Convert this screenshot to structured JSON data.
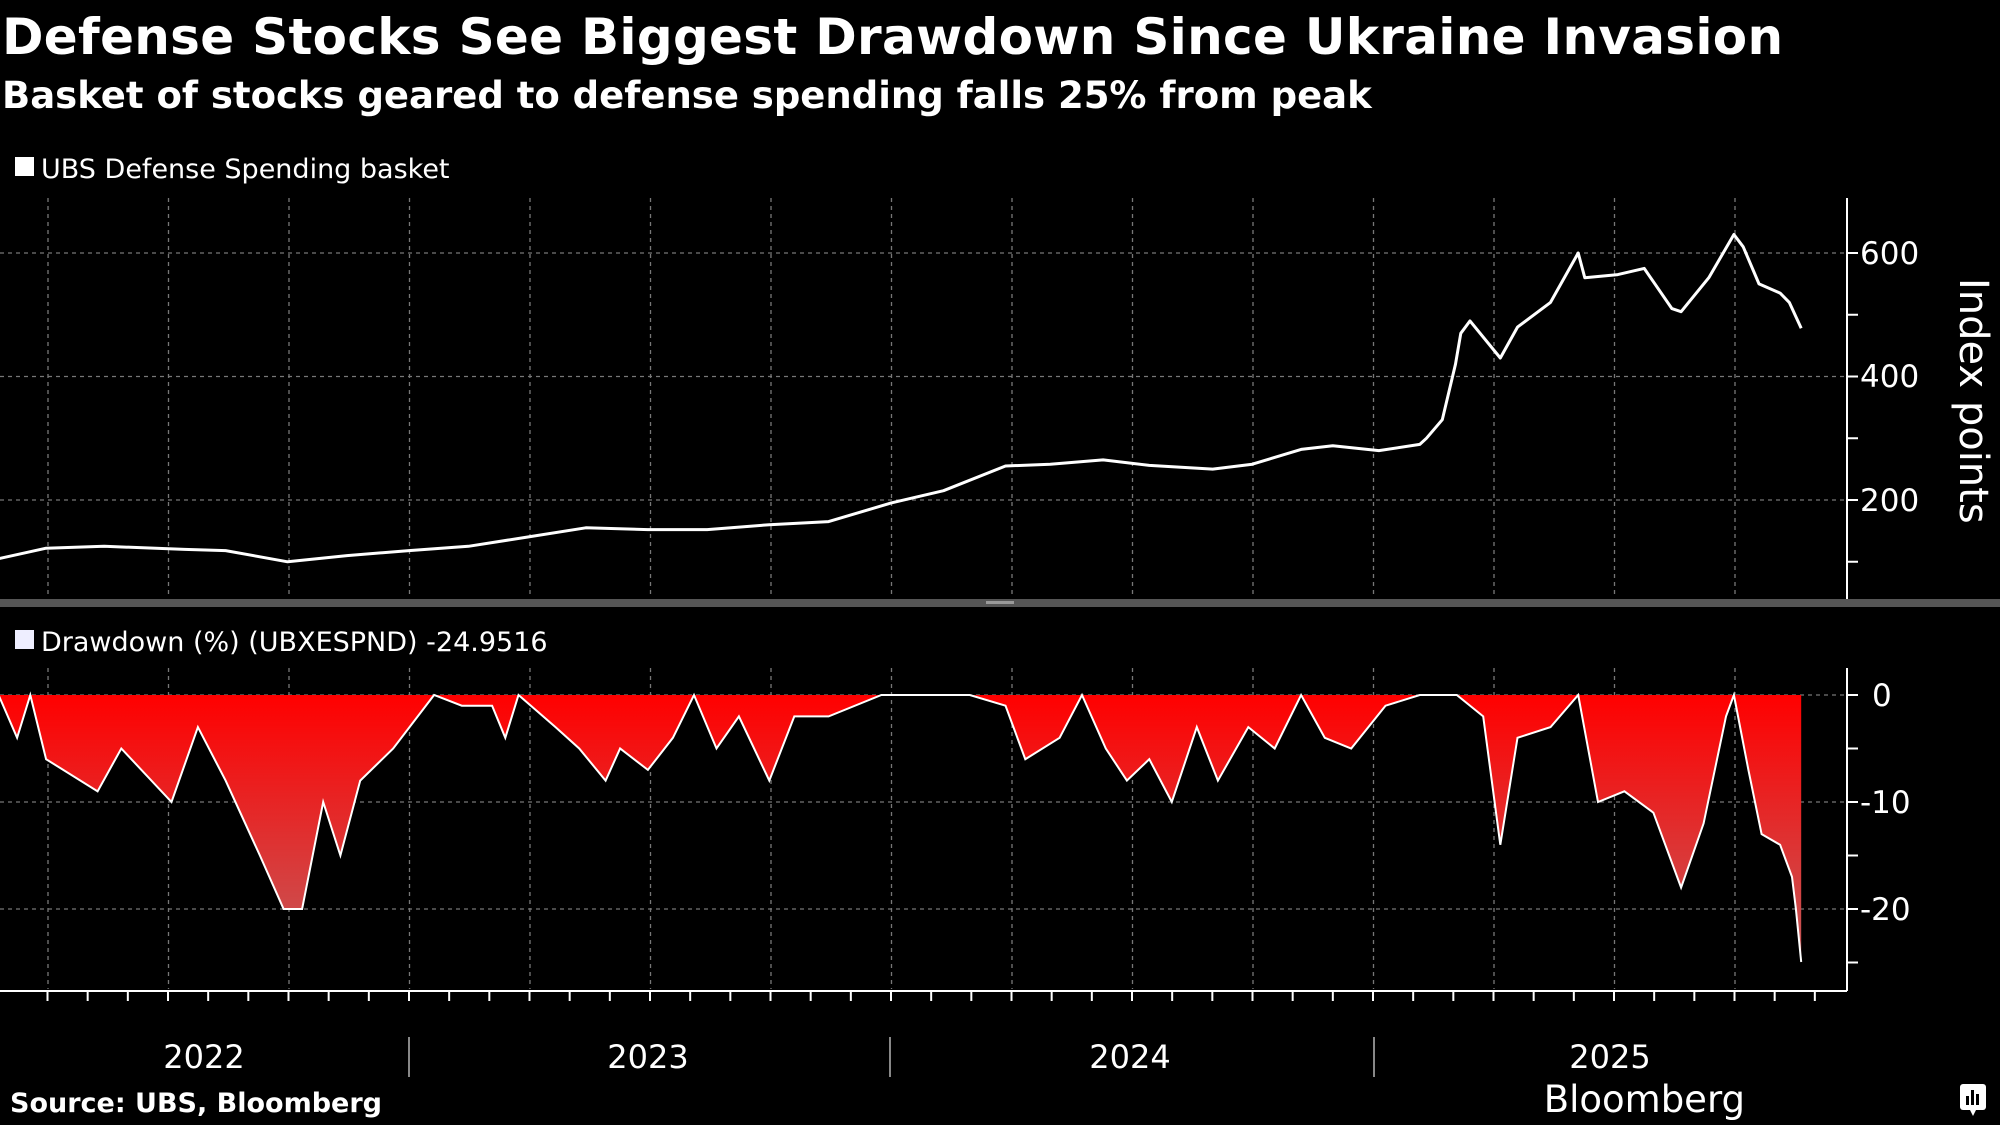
{
  "header": {
    "title": "Defense Stocks See Biggest Drawdown Since Ukraine Invasion",
    "subtitle": "Basket of stocks geared to defense spending falls 25% from peak"
  },
  "footer": {
    "source": "Source: UBS, Bloomberg",
    "brand": "Bloomberg"
  },
  "colors": {
    "background": "#000000",
    "line": "#ffffff",
    "drawdown_fill_top": "#ff0000",
    "drawdown_fill_bottom": "#c45a5a"
  },
  "chart_data": [
    {
      "type": "line",
      "legend": "UBS Defense Spending basket",
      "ylabel": "Index points",
      "yticks": [
        "200",
        "400",
        "600"
      ],
      "ylim": [
        38,
        690
      ],
      "grid": true,
      "legend_position": "top-left",
      "x_tick_labels": [
        "2022",
        "2023",
        "2024",
        "2025"
      ],
      "series": [
        {
          "name": "UBS Defense Spending basket",
          "points": [
            [
              "2022-02-24",
              105
            ],
            [
              "2022-04-01",
              122
            ],
            [
              "2022-05-15",
              125
            ],
            [
              "2022-07-15",
              120
            ],
            [
              "2022-08-15",
              118
            ],
            [
              "2022-10-01",
              100
            ],
            [
              "2022-11-15",
              110
            ],
            [
              "2023-01-01",
              118
            ],
            [
              "2023-02-15",
              125
            ],
            [
              "2023-04-01",
              140
            ],
            [
              "2023-05-15",
              155
            ],
            [
              "2023-07-01",
              152
            ],
            [
              "2023-08-15",
              152
            ],
            [
              "2023-10-01",
              160
            ],
            [
              "2023-11-15",
              165
            ],
            [
              "2024-01-01",
              195
            ],
            [
              "2024-02-10",
              215
            ],
            [
              "2024-03-28",
              255
            ],
            [
              "2024-05-01",
              258
            ],
            [
              "2024-06-10",
              265
            ],
            [
              "2024-07-15",
              256
            ],
            [
              "2024-09-01",
              250
            ],
            [
              "2024-10-01",
              258
            ],
            [
              "2024-11-07",
              282
            ],
            [
              "2024-12-01",
              288
            ],
            [
              "2025-01-05",
              280
            ],
            [
              "2025-02-05",
              290
            ],
            [
              "2025-02-10",
              300
            ],
            [
              "2025-02-22",
              330
            ],
            [
              "2025-03-04",
              420
            ],
            [
              "2025-03-08",
              470
            ],
            [
              "2025-03-15",
              490
            ],
            [
              "2025-04-07",
              430
            ],
            [
              "2025-04-20",
              480
            ],
            [
              "2025-05-15",
              520
            ],
            [
              "2025-06-05",
              600
            ],
            [
              "2025-06-10",
              560
            ],
            [
              "2025-07-05",
              565
            ],
            [
              "2025-07-25",
              575
            ],
            [
              "2025-08-15",
              510
            ],
            [
              "2025-08-22",
              505
            ],
            [
              "2025-09-12",
              560
            ],
            [
              "2025-10-01",
              630
            ],
            [
              "2025-10-08",
              610
            ],
            [
              "2025-10-20",
              550
            ],
            [
              "2025-11-05",
              535
            ],
            [
              "2025-11-12",
              520
            ],
            [
              "2025-11-21",
              478
            ]
          ]
        }
      ]
    },
    {
      "type": "area",
      "legend": "Drawdown (%) (UBXESPND) -24.9516",
      "yticks": [
        "0",
        "-10",
        "-20"
      ],
      "ylim": [
        -27,
        0
      ],
      "grid": true,
      "legend_position": "top-left",
      "series": [
        {
          "name": "Drawdown (%) (UBXESPND)",
          "last_value": -24.9516,
          "points": [
            [
              "2022-02-24",
              0
            ],
            [
              "2022-03-10",
              -4
            ],
            [
              "2022-03-20",
              0
            ],
            [
              "2022-04-01",
              -6
            ],
            [
              "2022-05-10",
              -9
            ],
            [
              "2022-05-28",
              -5
            ],
            [
              "2022-07-05",
              -10
            ],
            [
              "2022-07-25",
              -3
            ],
            [
              "2022-08-15",
              -8
            ],
            [
              "2022-09-10",
              -15
            ],
            [
              "2022-09-28",
              -20
            ],
            [
              "2022-10-12",
              -20
            ],
            [
              "2022-10-28",
              -10
            ],
            [
              "2022-11-10",
              -15
            ],
            [
              "2022-11-25",
              -8
            ],
            [
              "2022-12-20",
              -5
            ],
            [
              "2023-01-20",
              0
            ],
            [
              "2023-02-10",
              -1
            ],
            [
              "2023-03-05",
              -1
            ],
            [
              "2023-03-15",
              -4
            ],
            [
              "2023-03-25",
              0
            ],
            [
              "2023-04-22",
              -3
            ],
            [
              "2023-05-10",
              -5
            ],
            [
              "2023-05-30",
              -8
            ],
            [
              "2023-06-10",
              -5
            ],
            [
              "2023-07-01",
              -7
            ],
            [
              "2023-07-20",
              -4
            ],
            [
              "2023-08-05",
              0
            ],
            [
              "2023-08-22",
              -5
            ],
            [
              "2023-09-08",
              -2
            ],
            [
              "2023-10-01",
              -8
            ],
            [
              "2023-10-20",
              -2
            ],
            [
              "2023-11-15",
              -2
            ],
            [
              "2023-12-25",
              0
            ],
            [
              "2024-03-01",
              0
            ],
            [
              "2024-03-28",
              -1
            ],
            [
              "2024-04-12",
              -6
            ],
            [
              "2024-05-08",
              -4
            ],
            [
              "2024-05-25",
              0
            ],
            [
              "2024-06-12",
              -5
            ],
            [
              "2024-06-28",
              -8
            ],
            [
              "2024-07-15",
              -6
            ],
            [
              "2024-08-01",
              -10
            ],
            [
              "2024-08-20",
              -3
            ],
            [
              "2024-09-05",
              -8
            ],
            [
              "2024-09-28",
              -3
            ],
            [
              "2024-10-18",
              -5
            ],
            [
              "2024-11-07",
              0
            ],
            [
              "2024-11-25",
              -4
            ],
            [
              "2024-12-15",
              -5
            ],
            [
              "2025-01-10",
              -1
            ],
            [
              "2025-02-05",
              0
            ],
            [
              "2025-03-05",
              0
            ],
            [
              "2025-03-25",
              -2
            ],
            [
              "2025-04-07",
              -14
            ],
            [
              "2025-04-20",
              -4
            ],
            [
              "2025-05-15",
              -3
            ],
            [
              "2025-06-05",
              0
            ],
            [
              "2025-06-20",
              -10
            ],
            [
              "2025-07-10",
              -9
            ],
            [
              "2025-08-01",
              -11
            ],
            [
              "2025-08-22",
              -18
            ],
            [
              "2025-09-08",
              -12
            ],
            [
              "2025-09-25",
              -2
            ],
            [
              "2025-10-01",
              0
            ],
            [
              "2025-10-12",
              -7
            ],
            [
              "2025-10-22",
              -13
            ],
            [
              "2025-11-05",
              -14
            ],
            [
              "2025-11-14",
              -17
            ],
            [
              "2025-11-17",
              -20
            ],
            [
              "2025-11-21",
              -24.95
            ]
          ]
        }
      ]
    }
  ]
}
